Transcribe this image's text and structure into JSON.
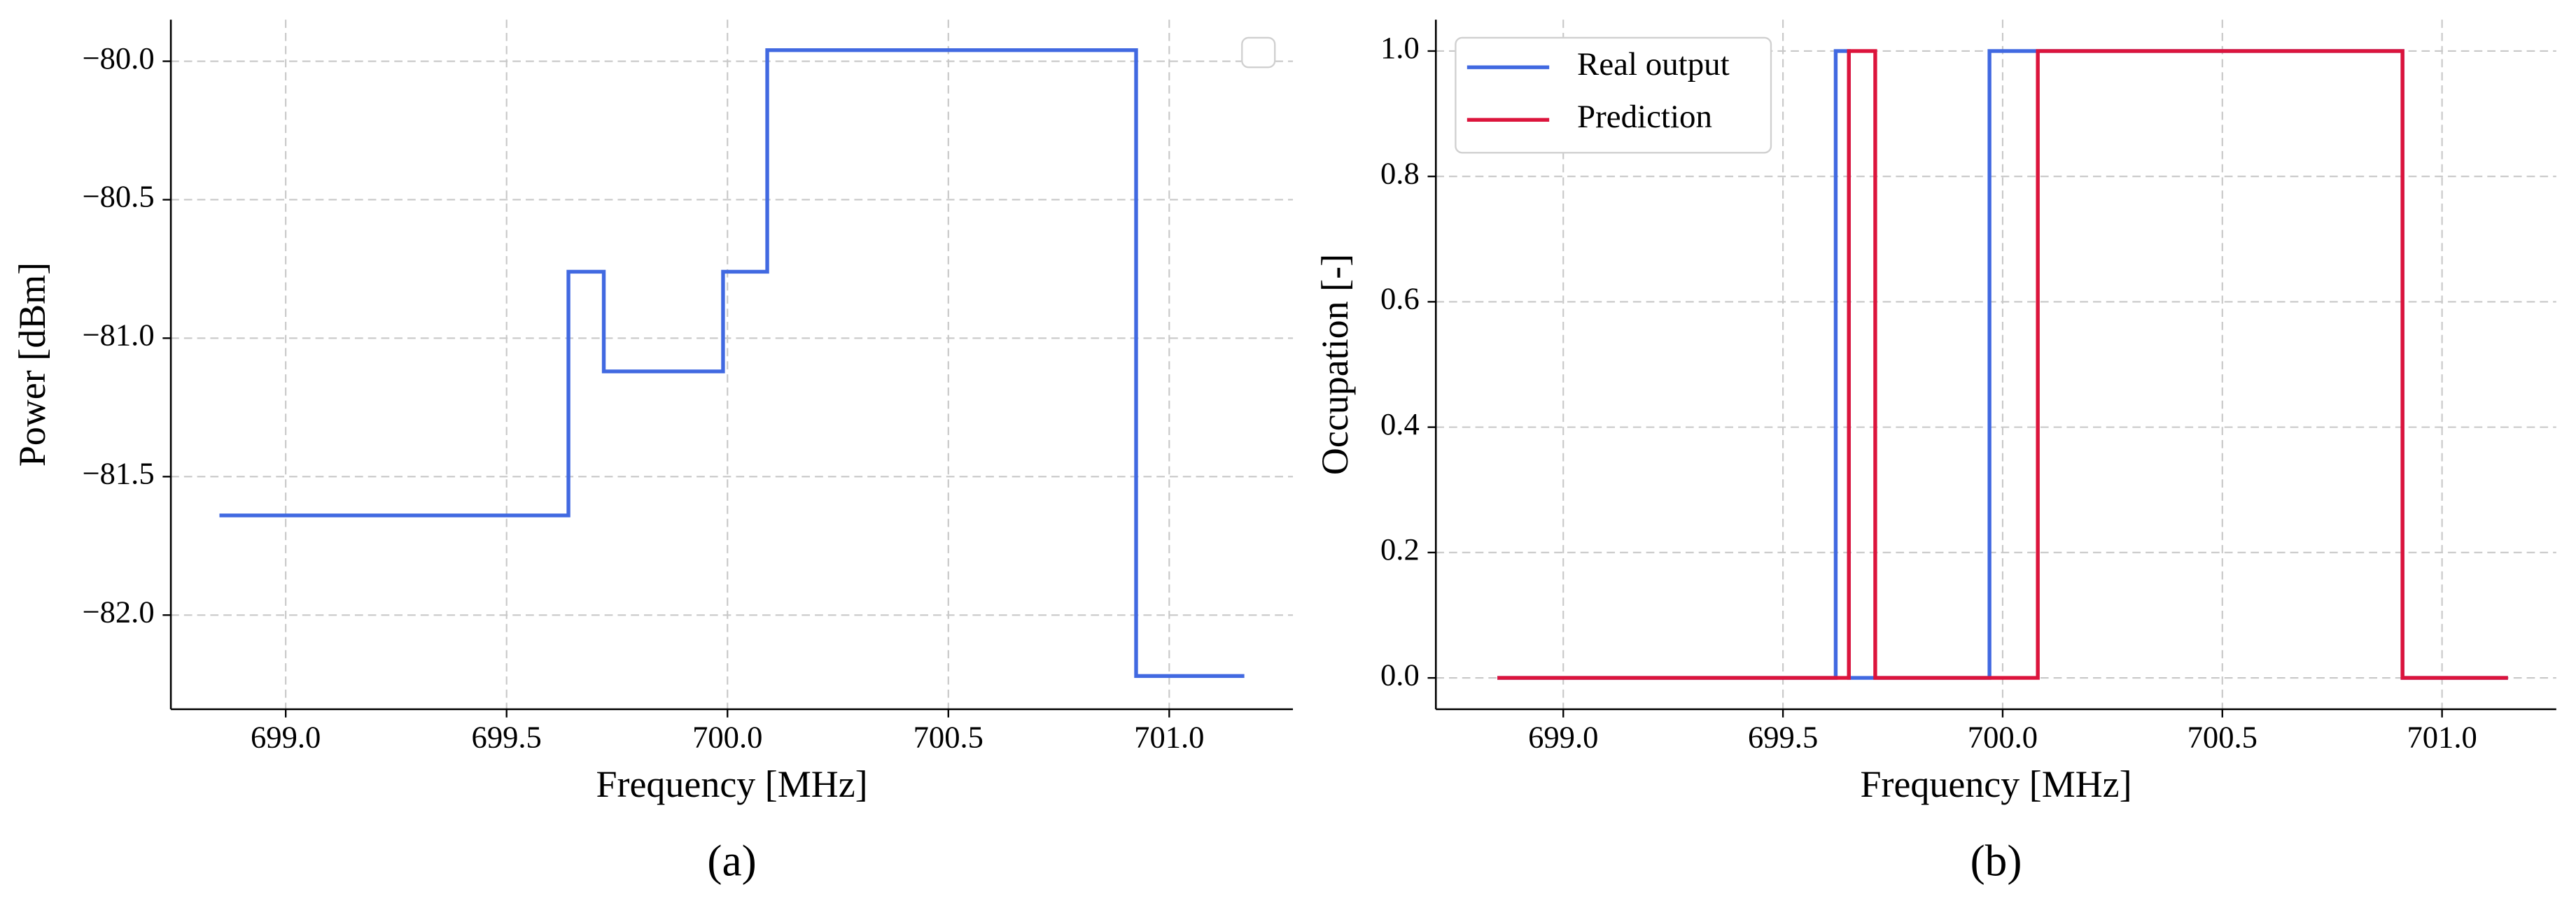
{
  "chart_data": [
    {
      "type": "line",
      "step": "post",
      "caption": "(a)",
      "x_label": "Frequency [MHz]",
      "y_label": "Power [dBm]",
      "x": [
        698.85,
        699.64,
        699.72,
        699.99,
        700.09,
        700.925,
        701.17
      ],
      "series": [
        {
          "color": "#4169e1",
          "values": [
            -81.64,
            -80.76,
            -81.12,
            -80.76,
            -79.96,
            -82.22,
            -82.22
          ]
        }
      ],
      "xlim": [
        698.74,
        701.28
      ],
      "xticks": [
        {
          "value": 699,
          "label": "699.0"
        },
        {
          "value": 699.5,
          "label": "699.5"
        },
        {
          "value": 700,
          "label": "700.0"
        },
        {
          "value": 700.5,
          "label": "700.5"
        },
        {
          "value": 701,
          "label": "701.0"
        }
      ],
      "ylim": [
        -82.34,
        -79.85
      ],
      "yticks": [
        {
          "value": -82,
          "label": "−82.0"
        },
        {
          "value": -81.5,
          "label": "−81.5"
        },
        {
          "value": -81,
          "label": "−81.0"
        },
        {
          "value": -80.5,
          "label": "−80.5"
        },
        {
          "value": -80,
          "label": "−80.0"
        }
      ],
      "grid": true,
      "legend": "upper right"
    },
    {
      "type": "line",
      "step": "post",
      "caption": "(b)",
      "x_label": "Frequency [MHz]",
      "y_label": "Occupation [-]",
      "x": [
        698.85,
        699.62,
        699.65,
        699.71,
        699.97,
        700.08,
        700.91,
        701.15
      ],
      "series": [
        {
          "name": "Real output",
          "color": "#4169e1",
          "values": [
            0,
            1,
            0,
            0,
            1,
            1,
            0,
            0
          ]
        },
        {
          "name": "Prediction",
          "color": "#dc143c",
          "values": [
            0,
            0,
            1,
            0,
            0,
            1,
            0,
            0
          ]
        }
      ],
      "xlim": [
        698.71,
        701.26
      ],
      "xticks": [
        {
          "value": 699,
          "label": "699.0"
        },
        {
          "value": 699.5,
          "label": "699.5"
        },
        {
          "value": 700,
          "label": "700.0"
        },
        {
          "value": 700.5,
          "label": "700.5"
        },
        {
          "value": 701,
          "label": "701.0"
        }
      ],
      "ylim": [
        -0.05,
        1.05
      ],
      "yticks": [
        {
          "value": 0,
          "label": "0.0"
        },
        {
          "value": 0.2,
          "label": "0.2"
        },
        {
          "value": 0.4,
          "label": "0.4"
        },
        {
          "value": 0.6,
          "label": "0.6"
        },
        {
          "value": 0.8,
          "label": "0.8"
        },
        {
          "value": 1,
          "label": "1.0"
        }
      ],
      "grid": true,
      "legend": "upper left"
    }
  ]
}
